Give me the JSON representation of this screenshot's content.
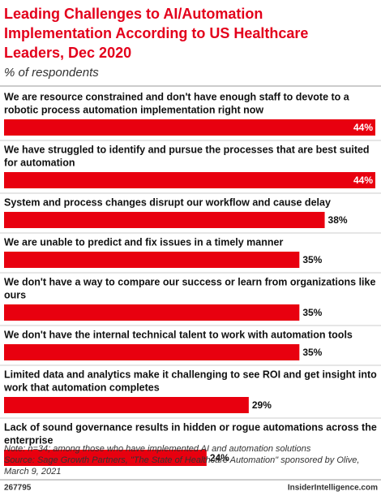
{
  "chart_data": {
    "type": "bar",
    "orientation": "horizontal",
    "title": [
      "Leading Challenges to AI/Automation",
      "Implementation According to US Healthcare",
      "Leaders, Dec 2020"
    ],
    "subtitle": "% of respondents",
    "categories": [
      [
        "We are resource constrained and don't have enough staff to devote to a",
        "robotic process automation implementation right now"
      ],
      [
        "We have struggled to identify and pursue the processes that are best suited",
        "for automation"
      ],
      [
        "System and process changes disrupt our workflow and cause delay"
      ],
      [
        "We are unable to predict and fix issues in a timely manner"
      ],
      [
        "We don't have a way to compare our success or learn from organizations like",
        "ours"
      ],
      [
        "We don't have the internal technical talent to work with automation tools"
      ],
      [
        "Limited data and analytics make it challenging to see ROI and get insight into",
        "work that automation completes"
      ],
      [
        "Lack of sound governance results in hidden or rogue automations across the",
        "enterprise"
      ]
    ],
    "values": [
      44,
      44,
      38,
      35,
      35,
      35,
      29,
      24
    ],
    "value_labels": [
      "44%",
      "44%",
      "38%",
      "35%",
      "35%",
      "35%",
      "29%",
      "24%"
    ],
    "color": "#e8000f",
    "xlim": [
      0,
      44
    ],
    "notes": [
      "Note: n=34; among those who have implemented AI and automation solutions",
      "Source: Sage Growth Partners, \"The State of Healthcare Automation\" sponsored by Olive,",
      "March 9, 2021"
    ],
    "footer_id": "267795",
    "footer_brand": "InsiderIntelligence.com"
  }
}
